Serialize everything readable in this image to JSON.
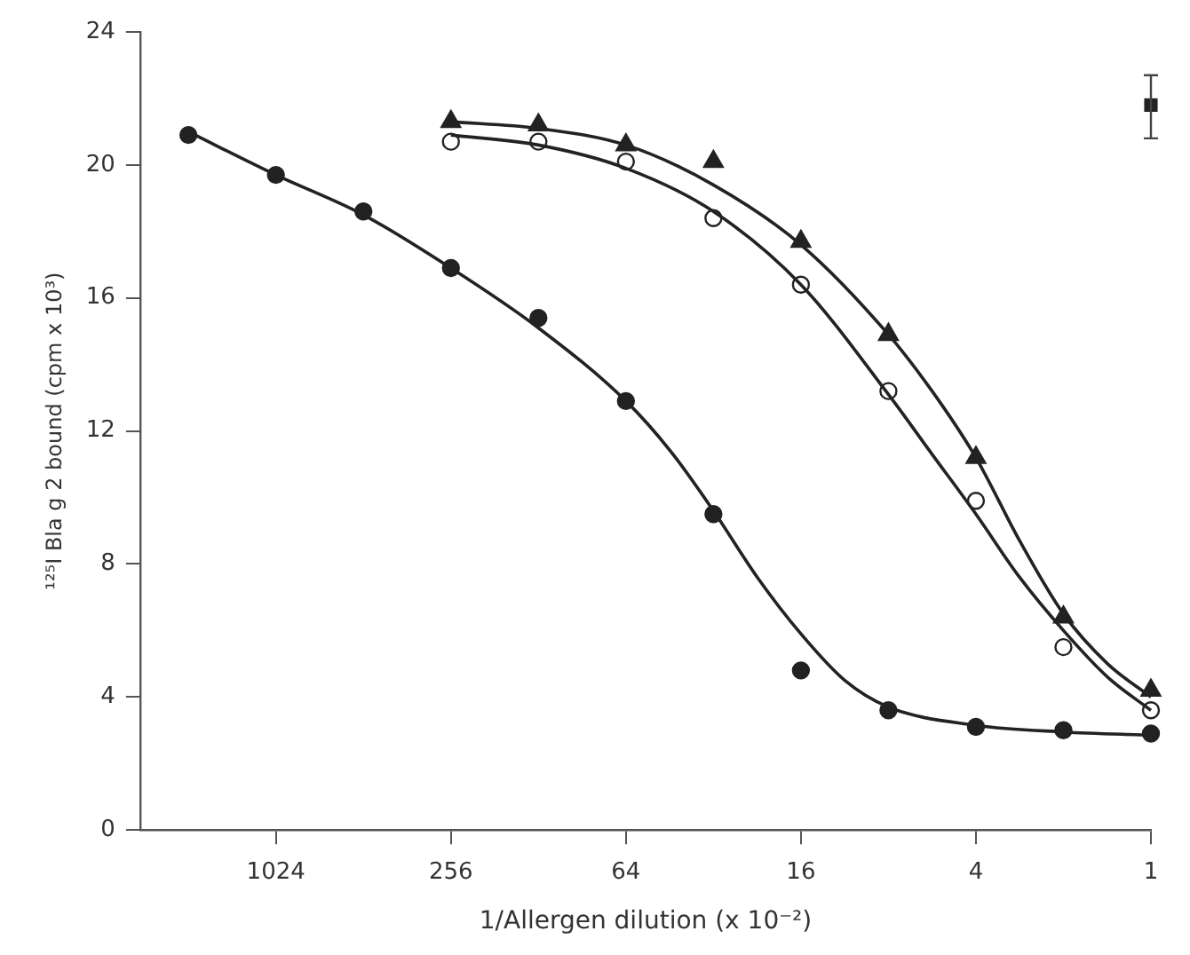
{
  "chart_data": {
    "type": "scatter",
    "xlabel": "1/Allergen dilution (x 10⁻²)",
    "ylabel": "¹²⁵I Bla g 2 bound (cpm x 10³)",
    "log": "x",
    "xlim": [
      3000,
      1
    ],
    "xticks": [
      1024,
      256,
      64,
      16,
      4,
      1
    ],
    "ylim": [
      0,
      24
    ],
    "yticks": [
      0,
      4,
      8,
      12,
      16,
      20,
      24
    ],
    "grid": false,
    "legend": false,
    "series": [
      {
        "type": "line",
        "marker": "none",
        "color": "#222222",
        "x": [
          2048,
          1024,
          512,
          256,
          128,
          64,
          45,
          32,
          22.6,
          16,
          11.3,
          8,
          4,
          2,
          1
        ],
        "values": [
          21.0,
          19.7,
          18.5,
          16.9,
          15.1,
          12.9,
          11.4,
          9.6,
          7.6,
          5.9,
          4.5,
          3.7,
          3.15,
          2.95,
          2.85
        ]
      },
      {
        "type": "line",
        "marker": "none",
        "color": "#222222",
        "x": [
          256,
          128,
          64,
          32,
          16,
          8,
          5.66,
          4,
          2.83,
          2,
          1.41,
          1
        ],
        "values": [
          20.9,
          20.6,
          19.9,
          18.6,
          16.4,
          13.1,
          11.3,
          9.5,
          7.6,
          6.0,
          4.6,
          3.6
        ]
      },
      {
        "type": "line",
        "marker": "none",
        "color": "#222222",
        "x": [
          256,
          128,
          64,
          32,
          16,
          8,
          5.66,
          4,
          2.83,
          2,
          1.41,
          1
        ],
        "values": [
          21.3,
          21.1,
          20.6,
          19.4,
          17.6,
          14.9,
          13.2,
          11.2,
          8.7,
          6.5,
          5.0,
          4.0
        ]
      },
      {
        "marker": "circle",
        "color": "#222222",
        "x": [
          2048,
          1024,
          512,
          256,
          128,
          64,
          32,
          16,
          8,
          4,
          2,
          1
        ],
        "values": [
          20.9,
          19.7,
          18.6,
          16.9,
          15.4,
          12.9,
          9.5,
          4.8,
          3.6,
          3.1,
          3.0,
          2.9
        ]
      },
      {
        "marker": "circle",
        "color": "#ffffff",
        "x": [
          256,
          128,
          64,
          32,
          16,
          8,
          4,
          2,
          1
        ],
        "values": [
          20.7,
          20.7,
          20.1,
          18.4,
          16.4,
          13.2,
          9.9,
          5.5,
          3.6
        ]
      },
      {
        "marker": "triangle",
        "color": "#222222",
        "x": [
          256,
          128,
          64,
          32,
          16,
          8,
          4,
          2,
          1
        ],
        "values": [
          21.3,
          21.2,
          20.6,
          20.1,
          17.7,
          14.9,
          11.2,
          6.4,
          4.2
        ]
      },
      {
        "marker": "square",
        "color": "#222222",
        "x": [
          1
        ],
        "values": [
          21.8
        ],
        "errors": [
          [
            20.8,
            22.7
          ]
        ]
      }
    ]
  }
}
